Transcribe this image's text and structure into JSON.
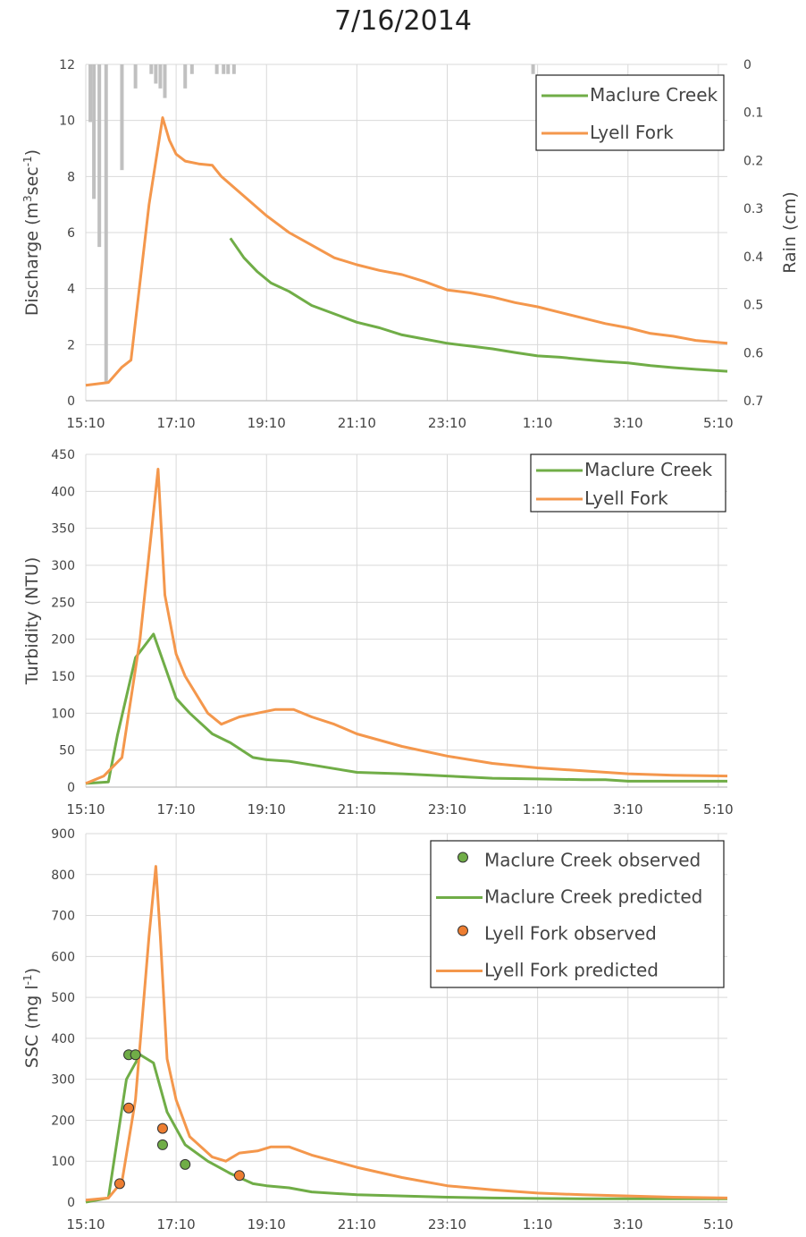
{
  "title": "7/16/2014",
  "x_tick_labels": [
    "15:10",
    "17:10",
    "19:10",
    "21:10",
    "23:10",
    "1:10",
    "3:10",
    "5:10"
  ],
  "colors": {
    "maclure": "#70ad47",
    "lyell": "#f4974c",
    "rain": "#c0c0c0",
    "grid": "#d9d9d9",
    "maclure_marker": "#70ad47",
    "lyell_marker": "#ed7d31"
  },
  "chart_data": [
    {
      "id": "discharge",
      "type": "line",
      "ylabel": "Discharge (m³sec⁻¹)",
      "ylabel_parts": [
        "Discharge (m",
        "3",
        "sec",
        "-1",
        ")"
      ],
      "y2label": "Rain (cm)",
      "ylim": [
        0,
        12
      ],
      "yticks": [
        0,
        2,
        4,
        6,
        8,
        10,
        12
      ],
      "y2lim": [
        0,
        0.7
      ],
      "y2ticks": [
        "0",
        "0.1",
        "0.2",
        "0.3",
        "0.4",
        "0.5",
        "0.6",
        "0.7"
      ],
      "x_unit": "hours since 15:10",
      "xlim": [
        0,
        14.2
      ],
      "legend": [
        "Maclure Creek",
        "Lyell Fork"
      ],
      "legend_position": "top-right",
      "series": [
        {
          "name": "Maclure Creek",
          "color_key": "maclure",
          "x": [
            3.2,
            3.5,
            3.8,
            4.1,
            4.5,
            5.0,
            5.5,
            6.0,
            6.5,
            7.0,
            7.5,
            8.0,
            8.5,
            9.0,
            9.5,
            10.0,
            10.5,
            11.0,
            11.5,
            12.0,
            12.5,
            13.0,
            13.5,
            14.2
          ],
          "y": [
            5.8,
            5.1,
            4.6,
            4.2,
            3.9,
            3.4,
            3.1,
            2.8,
            2.6,
            2.35,
            2.2,
            2.05,
            1.95,
            1.85,
            1.72,
            1.6,
            1.55,
            1.47,
            1.4,
            1.35,
            1.25,
            1.18,
            1.12,
            1.05
          ]
        },
        {
          "name": "Lyell Fork",
          "color_key": "lyell",
          "x": [
            0,
            0.5,
            0.8,
            1.0,
            1.4,
            1.7,
            1.85,
            2.0,
            2.2,
            2.5,
            2.8,
            3.0,
            3.5,
            4.0,
            4.5,
            5.0,
            5.5,
            6.0,
            6.5,
            7.0,
            7.5,
            8.0,
            8.5,
            9.0,
            9.5,
            10.0,
            10.5,
            11.0,
            11.5,
            12.0,
            12.5,
            13.0,
            13.5,
            14.2
          ],
          "y": [
            0.55,
            0.65,
            1.2,
            1.45,
            7.0,
            10.1,
            9.3,
            8.8,
            8.55,
            8.45,
            8.4,
            8.0,
            7.3,
            6.6,
            6.0,
            5.55,
            5.1,
            4.85,
            4.65,
            4.5,
            4.25,
            3.95,
            3.85,
            3.7,
            3.5,
            3.35,
            3.15,
            2.95,
            2.75,
            2.6,
            2.4,
            2.3,
            2.15,
            2.05
          ]
        }
      ],
      "rain": {
        "name": "Rain",
        "color_key": "rain",
        "x": [
          0.1,
          0.18,
          0.3,
          0.45,
          0.8,
          1.1,
          1.45,
          1.55,
          1.65,
          1.75,
          2.2,
          2.35,
          2.9,
          3.05,
          3.15,
          3.28,
          9.9
        ],
        "y": [
          0.12,
          0.28,
          0.38,
          0.66,
          0.22,
          0.05,
          0.02,
          0.04,
          0.05,
          0.07,
          0.05,
          0.02,
          0.02,
          0.02,
          0.02,
          0.02,
          0.02
        ]
      }
    },
    {
      "id": "turbidity",
      "type": "line",
      "ylabel": "Turbidity (NTU)",
      "ylim": [
        0,
        450
      ],
      "yticks": [
        0,
        50,
        100,
        150,
        200,
        250,
        300,
        350,
        400,
        450
      ],
      "x_unit": "hours since 15:10",
      "xlim": [
        0,
        14.2
      ],
      "legend": [
        "Maclure Creek",
        "Lyell Fork"
      ],
      "legend_position": "top-right",
      "series": [
        {
          "name": "Maclure Creek",
          "color_key": "maclure",
          "x": [
            0,
            0.5,
            0.7,
            1.1,
            1.5,
            2.0,
            2.3,
            2.8,
            3.2,
            3.7,
            4.0,
            4.5,
            5.0,
            6.0,
            7.0,
            8.0,
            9.0,
            10.0,
            11.0,
            11.5,
            12.0,
            13.0,
            14.2
          ],
          "y": [
            5,
            7,
            70,
            175,
            207,
            120,
            100,
            72,
            60,
            40,
            37,
            35,
            30,
            20,
            18,
            15,
            12,
            11,
            10,
            10,
            8,
            8,
            8
          ]
        },
        {
          "name": "Lyell Fork",
          "color_key": "lyell",
          "x": [
            0,
            0.4,
            0.8,
            1.2,
            1.6,
            1.75,
            2.0,
            2.2,
            2.7,
            3.0,
            3.4,
            3.8,
            4.2,
            4.6,
            5.0,
            5.5,
            6.0,
            7.0,
            8.0,
            9.0,
            10.0,
            11.0,
            12.0,
            13.0,
            14.2
          ],
          "y": [
            5,
            15,
            40,
            200,
            430,
            260,
            180,
            150,
            100,
            85,
            95,
            100,
            105,
            105,
            95,
            85,
            72,
            55,
            42,
            32,
            26,
            22,
            18,
            16,
            15
          ]
        }
      ]
    },
    {
      "id": "ssc",
      "type": "line",
      "ylabel": "SSC (mg l⁻¹)",
      "ylabel_parts": [
        "SSC (mg l",
        "-1",
        ")"
      ],
      "ylim": [
        0,
        900
      ],
      "yticks": [
        0,
        100,
        200,
        300,
        400,
        500,
        600,
        700,
        800,
        900
      ],
      "x_unit": "hours since 15:10",
      "xlim": [
        0,
        14.2
      ],
      "legend": [
        "Maclure Creek observed",
        "Maclure Creek predicted",
        "Lyell Fork observed",
        "Lyell Fork predicted"
      ],
      "legend_position": "top-right",
      "series": [
        {
          "name": "Maclure Creek predicted",
          "color_key": "maclure",
          "x": [
            0,
            0.5,
            0.9,
            1.2,
            1.5,
            1.8,
            2.2,
            2.7,
            3.2,
            3.7,
            4.0,
            4.5,
            5.0,
            6.0,
            7.0,
            8.0,
            9.0,
            10.0,
            11.0,
            12.0,
            13.0,
            14.2
          ],
          "y": [
            0,
            10,
            300,
            360,
            340,
            220,
            140,
            100,
            70,
            45,
            40,
            35,
            25,
            18,
            15,
            12,
            10,
            9,
            8,
            8,
            8,
            8
          ]
        },
        {
          "name": "Lyell Fork predicted",
          "color_key": "lyell",
          "x": [
            0,
            0.5,
            0.8,
            1.1,
            1.4,
            1.55,
            1.65,
            1.8,
            2.0,
            2.3,
            2.8,
            3.1,
            3.4,
            3.8,
            4.1,
            4.5,
            5.0,
            5.5,
            6.0,
            7.0,
            8.0,
            9.0,
            10.0,
            11.0,
            12.0,
            13.0,
            14.2
          ],
          "y": [
            5,
            10,
            50,
            250,
            650,
            820,
            650,
            350,
            250,
            160,
            110,
            100,
            120,
            125,
            135,
            135,
            115,
            100,
            85,
            60,
            40,
            30,
            22,
            18,
            15,
            12,
            10
          ]
        },
        {
          "name": "Maclure Creek observed",
          "color_key": "maclure_marker",
          "markers": true,
          "x": [
            0.95,
            1.1,
            1.7,
            2.2
          ],
          "y": [
            360,
            360,
            140,
            92
          ]
        },
        {
          "name": "Lyell Fork observed",
          "color_key": "lyell_marker",
          "markers": true,
          "x": [
            0.75,
            0.95,
            1.7,
            3.4
          ],
          "y": [
            45,
            230,
            180,
            65
          ]
        }
      ]
    }
  ]
}
